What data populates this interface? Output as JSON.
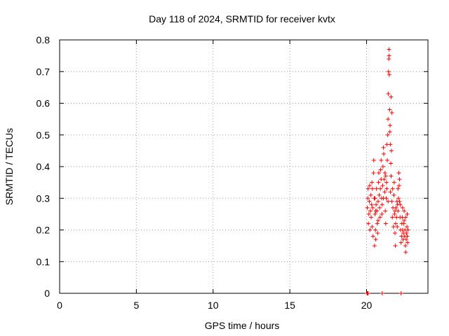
{
  "chart_data": {
    "type": "scatter",
    "title": "Day 118 of 2024, SRMTID for receiver kvtx",
    "xlabel": "GPS time / hours",
    "ylabel": "SRMTID / TECUs",
    "xlim": [
      0,
      24
    ],
    "ylim": [
      0,
      0.8
    ],
    "grid": true,
    "marker": "+",
    "color": "#ff0000",
    "xticks": [
      0,
      5,
      10,
      15,
      20
    ],
    "xtick_labels": [
      "0",
      "5",
      "10",
      "15",
      "20"
    ],
    "yticks": [
      0,
      0.1,
      0.2,
      0.3,
      0.4,
      0.5,
      0.6,
      0.7,
      0.8
    ],
    "ytick_labels": [
      "0",
      "0.1",
      "0.2",
      "0.3",
      "0.4",
      "0.5",
      "0.6",
      "0.7",
      "0.8"
    ],
    "series": [
      {
        "name": "SRMTID",
        "points": [
          [
            20.03,
            0.0
          ],
          [
            20.07,
            0.0
          ],
          [
            20.1,
            0.0
          ],
          [
            21.02,
            0.0
          ],
          [
            22.25,
            0.0
          ],
          [
            20.05,
            0.27
          ],
          [
            20.08,
            0.3
          ],
          [
            20.1,
            0.33
          ],
          [
            20.12,
            0.22
          ],
          [
            20.15,
            0.25
          ],
          [
            20.18,
            0.29
          ],
          [
            20.2,
            0.34
          ],
          [
            20.22,
            0.2
          ],
          [
            20.25,
            0.26
          ],
          [
            20.28,
            0.31
          ],
          [
            20.3,
            0.24
          ],
          [
            20.33,
            0.28
          ],
          [
            20.36,
            0.21
          ],
          [
            20.38,
            0.33
          ],
          [
            20.4,
            0.27
          ],
          [
            20.42,
            0.18
          ],
          [
            20.45,
            0.38
          ],
          [
            20.47,
            0.42
          ],
          [
            20.5,
            0.3
          ],
          [
            20.52,
            0.15
          ],
          [
            20.55,
            0.25
          ],
          [
            20.58,
            0.2
          ],
          [
            20.6,
            0.17
          ],
          [
            20.62,
            0.28
          ],
          [
            20.65,
            0.33
          ],
          [
            20.68,
            0.26
          ],
          [
            20.7,
            0.22
          ],
          [
            20.72,
            0.19
          ],
          [
            20.75,
            0.29
          ],
          [
            20.78,
            0.35
          ],
          [
            20.8,
            0.38
          ],
          [
            20.82,
            0.31
          ],
          [
            20.85,
            0.27
          ],
          [
            20.88,
            0.24
          ],
          [
            20.9,
            0.33
          ],
          [
            20.92,
            0.39
          ],
          [
            20.95,
            0.36
          ],
          [
            20.98,
            0.3
          ],
          [
            21.0,
            0.25
          ],
          [
            21.02,
            0.28
          ],
          [
            21.05,
            0.34
          ],
          [
            21.07,
            0.4
          ],
          [
            21.1,
            0.46
          ],
          [
            21.12,
            0.44
          ],
          [
            21.15,
            0.36
          ],
          [
            21.18,
            0.32
          ],
          [
            21.2,
            0.38
          ],
          [
            21.22,
            0.26
          ],
          [
            21.25,
            0.22
          ],
          [
            21.28,
            0.3
          ],
          [
            21.3,
            0.35
          ],
          [
            21.32,
            0.33
          ],
          [
            21.35,
            0.42
          ],
          [
            21.38,
            0.5
          ],
          [
            21.4,
            0.55
          ],
          [
            21.42,
            0.63
          ],
          [
            21.43,
            0.7
          ],
          [
            21.45,
            0.74
          ],
          [
            21.46,
            0.77
          ],
          [
            21.47,
            0.75
          ],
          [
            21.48,
            0.69
          ],
          [
            21.5,
            0.58
          ],
          [
            21.52,
            0.51
          ],
          [
            21.55,
            0.47
          ],
          [
            21.58,
            0.41
          ],
          [
            21.6,
            0.37
          ],
          [
            21.62,
            0.45
          ],
          [
            21.65,
            0.29
          ],
          [
            21.68,
            0.24
          ],
          [
            21.7,
            0.33
          ],
          [
            21.72,
            0.27
          ],
          [
            21.75,
            0.21
          ],
          [
            21.78,
            0.31
          ],
          [
            21.8,
            0.35
          ],
          [
            21.82,
            0.25
          ],
          [
            21.85,
            0.19
          ],
          [
            21.88,
            0.15
          ],
          [
            21.9,
            0.22
          ],
          [
            21.92,
            0.27
          ],
          [
            21.95,
            0.24
          ],
          [
            21.98,
            0.29
          ],
          [
            22.0,
            0.21
          ],
          [
            22.02,
            0.28
          ],
          [
            22.05,
            0.26
          ],
          [
            22.08,
            0.3
          ],
          [
            22.1,
            0.38
          ],
          [
            22.12,
            0.34
          ],
          [
            22.15,
            0.29
          ],
          [
            22.18,
            0.24
          ],
          [
            22.2,
            0.28
          ],
          [
            22.22,
            0.2
          ],
          [
            22.25,
            0.16
          ],
          [
            22.28,
            0.18
          ],
          [
            22.3,
            0.22
          ],
          [
            22.33,
            0.24
          ],
          [
            22.35,
            0.2
          ],
          [
            22.38,
            0.17
          ],
          [
            22.4,
            0.19
          ],
          [
            22.43,
            0.22
          ],
          [
            22.45,
            0.26
          ],
          [
            22.48,
            0.18
          ],
          [
            22.5,
            0.2
          ],
          [
            22.53,
            0.15
          ],
          [
            22.55,
            0.13
          ],
          [
            22.58,
            0.17
          ],
          [
            22.6,
            0.19
          ],
          [
            22.63,
            0.21
          ],
          [
            22.65,
            0.18
          ],
          [
            22.68,
            0.16
          ],
          [
            22.7,
            0.2
          ],
          [
            20.35,
            0.35
          ],
          [
            20.55,
            0.3
          ],
          [
            20.75,
            0.23
          ],
          [
            20.95,
            0.42
          ],
          [
            21.25,
            0.37
          ],
          [
            21.55,
            0.32
          ],
          [
            21.85,
            0.26
          ],
          [
            22.15,
            0.36
          ],
          [
            22.45,
            0.23
          ],
          [
            22.65,
            0.25
          ],
          [
            20.6,
            0.26
          ],
          [
            21.1,
            0.3
          ],
          [
            21.4,
            0.29
          ],
          [
            21.6,
            0.62
          ],
          [
            22.05,
            0.33
          ],
          [
            22.35,
            0.27
          ],
          [
            22.55,
            0.24
          ],
          [
            21.53,
            0.53
          ],
          [
            21.33,
            0.47
          ],
          [
            21.65,
            0.57
          ]
        ]
      }
    ]
  }
}
